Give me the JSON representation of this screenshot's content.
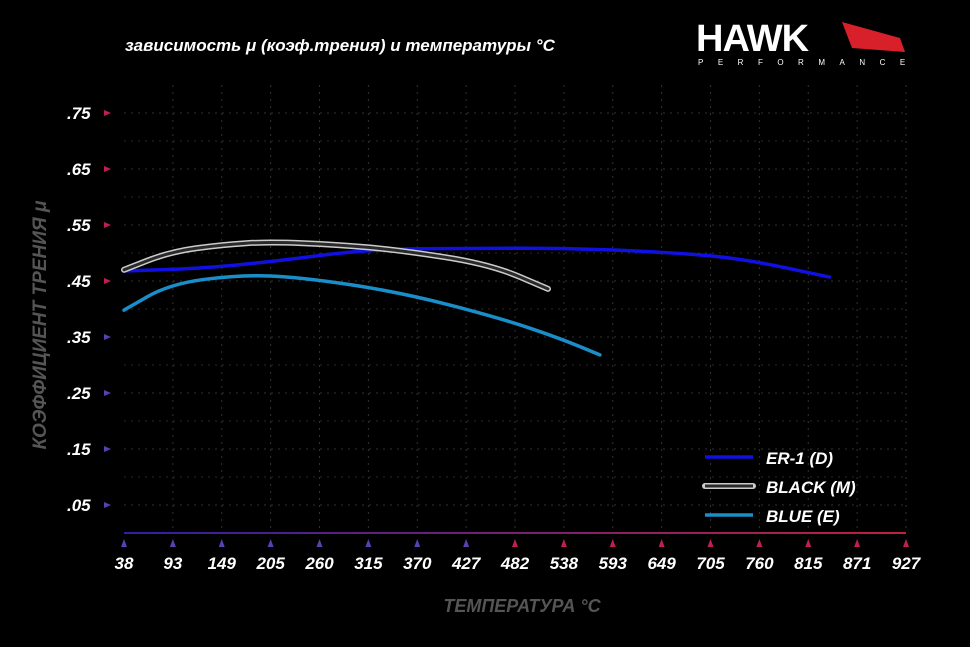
{
  "chart_data": {
    "type": "line",
    "title": "зависимость μ (коэф.трения) и температуры °C",
    "xlabel": "ТЕМПЕРАТУРА °C",
    "ylabel": "КОЭФФИЦИЕНТ ТРЕНИЯ μ",
    "x_ticks": [
      "38",
      "93",
      "149",
      "205",
      "260",
      "315",
      "370",
      "427",
      "482",
      "538",
      "593",
      "649",
      "705",
      "760",
      "815",
      "871",
      "927"
    ],
    "y_ticks": [
      ".75",
      ".65",
      ".55",
      ".45",
      ".35",
      ".25",
      ".15",
      ".05"
    ],
    "y_tick_values": [
      0.75,
      0.65,
      0.55,
      0.45,
      0.35,
      0.25,
      0.15,
      0.05
    ],
    "xlim": [
      38,
      927
    ],
    "ylim": [
      0,
      0.8
    ],
    "grid": true,
    "legend": "bottom-right",
    "series": [
      {
        "name": "ER-1 (D)",
        "color": "#1010e0",
        "points": [
          [
            38,
            0.468
          ],
          [
            120,
            0.472
          ],
          [
            204,
            0.484
          ],
          [
            317,
            0.507
          ],
          [
            427,
            0.508
          ],
          [
            533,
            0.509
          ],
          [
            649,
            0.502
          ],
          [
            738,
            0.491
          ],
          [
            840,
            0.457
          ]
        ]
      },
      {
        "name": "BLACK (M)",
        "color": "#2a2a2a",
        "points": [
          [
            38,
            0.47
          ],
          [
            90,
            0.502
          ],
          [
            150,
            0.515
          ],
          [
            204,
            0.52
          ],
          [
            280,
            0.515
          ],
          [
            352,
            0.505
          ],
          [
            454,
            0.48
          ],
          [
            520,
            0.436
          ]
        ]
      },
      {
        "name": "BLUE (E)",
        "color": "#1a8ec8",
        "points": [
          [
            38,
            0.398
          ],
          [
            90,
            0.445
          ],
          [
            170,
            0.461
          ],
          [
            238,
            0.457
          ],
          [
            352,
            0.43
          ],
          [
            465,
            0.384
          ],
          [
            533,
            0.348
          ],
          [
            579,
            0.318
          ]
        ]
      }
    ]
  },
  "logo": {
    "brand": "HAWK",
    "sub": "PERFORMANCE"
  }
}
